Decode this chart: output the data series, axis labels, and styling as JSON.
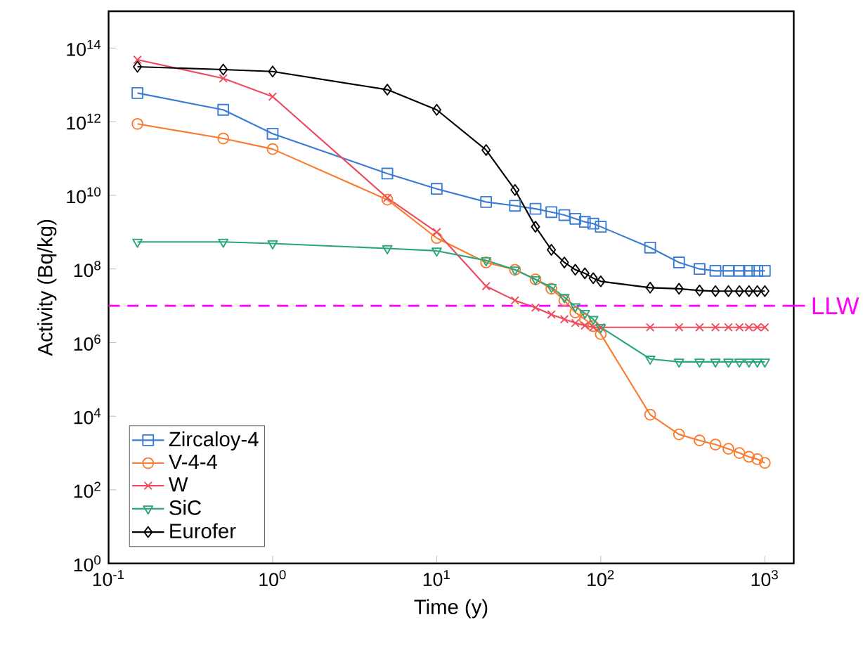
{
  "chart_data": {
    "type": "line",
    "xlabel": "Time (y)",
    "ylabel": "Activity (Bq/kg)",
    "log": "xy",
    "legend": "bottom left",
    "grid": false,
    "line_style": "solid",
    "x": [
      0.15,
      0.5,
      1,
      5,
      10,
      20,
      30,
      40,
      50,
      60,
      70,
      80,
      90,
      100,
      200,
      300,
      400,
      500,
      600,
      700,
      800,
      900,
      1000
    ],
    "xlim": [
      0.1,
      1500
    ],
    "ylim": [
      1,
      1000000000000000.0
    ],
    "xticks": [
      {
        "value": 0.1,
        "label": "10$^{-1}$"
      },
      {
        "value": 1,
        "label": "10$^{0}$"
      },
      {
        "value": 10,
        "label": "10$^{1}$"
      },
      {
        "value": 100,
        "label": "10$^{2}$"
      },
      {
        "value": 1000,
        "label": "10$^{3}$"
      }
    ],
    "yticks": [
      {
        "value": 1,
        "label": "10$^{0}$"
      },
      {
        "value": 100,
        "label": "10$^{2}$"
      },
      {
        "value": 10000,
        "label": "10$^{4}$"
      },
      {
        "value": 1000000,
        "label": "10$^{6}$"
      },
      {
        "value": 100000000,
        "label": "10$^{8}$"
      },
      {
        "value": 10000000000,
        "label": "10$^{10}$"
      },
      {
        "value": 1000000000000,
        "label": "10$^{12}$"
      },
      {
        "value": 100000000000000,
        "label": "10$^{14}$"
      }
    ],
    "series": [
      {
        "name": "Zircaloy-4",
        "color": "#3a7bd5",
        "marker": "square",
        "values": [
          6000000000000.0,
          2100000000000.0,
          470000000000.0,
          39000000000.0,
          15000000000.0,
          6600000000.0,
          5200000000.0,
          4300000000.0,
          3500000000.0,
          2900000000.0,
          2300000000.0,
          1900000000.0,
          1700000000.0,
          1400000000.0,
          380000000.0,
          150000000.0,
          100000000.0,
          89000000.0,
          89000000.0,
          89000000.0,
          89000000.0,
          89000000.0,
          89000000.0
        ]
      },
      {
        "name": "V-4-4",
        "color": "#f97b2d",
        "marker": "circle",
        "values": [
          870000000000.0,
          350000000000.0,
          180000000000.0,
          7600000000.0,
          690000000.0,
          150000000.0,
          95000000.0,
          52000000.0,
          29000000.0,
          14000000.0,
          6600000.0,
          4300000.0,
          2800000.0,
          1700000.0,
          11000.0,
          3200.0,
          2200.0,
          1700.0,
          1300.0,
          1000.0,
          790.0,
          680.0,
          540.0
        ]
      },
      {
        "name": "W",
        "color": "#ee4b5f",
        "marker": "cross",
        "values": [
          48000000000000.0,
          15000000000000.0,
          4800000000000.0,
          8500000000.0,
          1000000000.0,
          34000000.0,
          14000000.0,
          8900000.0,
          5800000.0,
          4300000.0,
          3400000.0,
          2900000.0,
          2600000.0,
          2600000.0,
          2600000.0,
          2600000.0,
          2600000.0,
          2600000.0,
          2600000.0,
          2600000.0,
          2600000.0,
          2600000.0,
          2600000.0
        ]
      },
      {
        "name": "SiC",
        "color": "#2aa57d",
        "marker": "triangle",
        "values": [
          540000000.0,
          540000000.0,
          490000000.0,
          360000000.0,
          310000000.0,
          170000000.0,
          95000000.0,
          52000000.0,
          32000000.0,
          17000000.0,
          9500000.0,
          6300000.0,
          4300000.0,
          2600000.0,
          360000.0,
          300000.0,
          300000.0,
          300000.0,
          300000.0,
          300000.0,
          300000.0,
          300000.0,
          300000.0
        ]
      },
      {
        "name": "Eurofer",
        "color": "#000000",
        "marker": "diamond",
        "values": [
          31000000000000.0,
          26000000000000.0,
          23000000000000.0,
          7400000000000.0,
          2100000000000.0,
          170000000000.0,
          14000000000.0,
          1400000000.0,
          330000000.0,
          150000000.0,
          95000000.0,
          76000000.0,
          56000000.0,
          46000000.0,
          31000000.0,
          29000000.0,
          26000000.0,
          25000000.0,
          25000000.0,
          25000000.0,
          25000000.0,
          25000000.0,
          25000000.0
        ]
      }
    ],
    "ref_lines": [
      {
        "axis": "y",
        "value": 10000000.0,
        "label": "LLW",
        "color": "#ff00ff",
        "line_style": "dashed"
      }
    ]
  }
}
